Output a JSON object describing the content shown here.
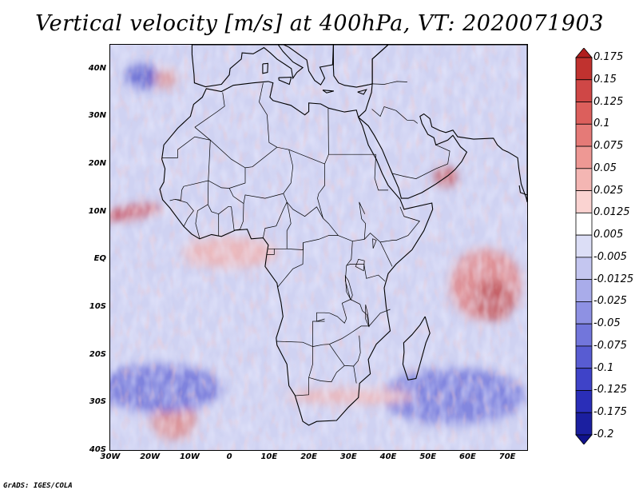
{
  "title": "Vertical velocity [m/s] at 400hPa, VT: 2020071903",
  "credit": "GrADS: IGES/COLA",
  "map": {
    "region": "Africa",
    "lon_range": [
      -30,
      75
    ],
    "lat_range": [
      -40,
      45
    ],
    "lat_labels": [
      {
        "lat": 40,
        "text": "40N"
      },
      {
        "lat": 30,
        "text": "30N"
      },
      {
        "lat": 20,
        "text": "20N"
      },
      {
        "lat": 10,
        "text": "10N"
      },
      {
        "lat": 0,
        "text": "EQ"
      },
      {
        "lat": -10,
        "text": "10S"
      },
      {
        "lat": -20,
        "text": "20S"
      },
      {
        "lat": -30,
        "text": "30S"
      },
      {
        "lat": -40,
        "text": "40S"
      }
    ],
    "lon_labels": [
      {
        "lon": -30,
        "text": "30W"
      },
      {
        "lon": -20,
        "text": "20W"
      },
      {
        "lon": -10,
        "text": "10W"
      },
      {
        "lon": 0,
        "text": "0"
      },
      {
        "lon": 10,
        "text": "10E"
      },
      {
        "lon": 20,
        "text": "20E"
      },
      {
        "lon": 30,
        "text": "30E"
      },
      {
        "lon": 40,
        "text": "40E"
      },
      {
        "lon": 50,
        "text": "50E"
      },
      {
        "lon": 60,
        "text": "60E"
      },
      {
        "lon": 70,
        "text": "70E"
      }
    ],
    "colors": {
      "ocean_base": "#cfd2f2",
      "coastline": "#000000"
    }
  },
  "colorbar": {
    "levels": [
      "0.175",
      "0.15",
      "0.125",
      "0.1",
      "0.075",
      "0.05",
      "0.025",
      "0.0125",
      "0.005",
      "-0.005",
      "-0.0125",
      "-0.025",
      "-0.05",
      "-0.075",
      "-0.1",
      "-0.125",
      "-0.175",
      "-0.2"
    ],
    "colors": [
      "#b01e1e",
      "#c0322f",
      "#cf4746",
      "#dc5f5c",
      "#e57a77",
      "#ee9894",
      "#f4b6b3",
      "#fad3d1",
      "#ffffff",
      "#dcdef6",
      "#c4c6f0",
      "#a9acea",
      "#8e91e3",
      "#7276db",
      "#585cd2",
      "#3f43c8",
      "#2a2eb8",
      "#1b1fa0",
      "#10128c"
    ]
  }
}
